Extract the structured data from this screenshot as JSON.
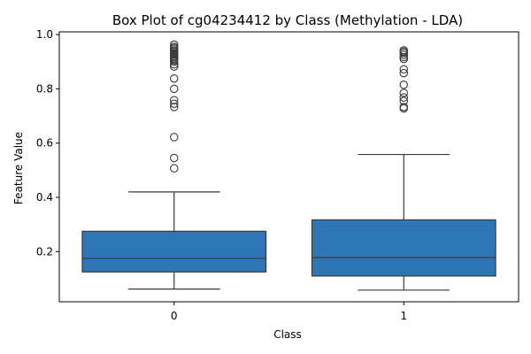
{
  "chart_data": {
    "type": "box",
    "title": "Box Plot of cg04234412 by Class (Methylation - LDA)",
    "xlabel": "Class",
    "ylabel": "Feature Value",
    "categories": [
      "0",
      "1"
    ],
    "ylim": [
      0.015,
      1.01
    ],
    "yticks": [
      0.2,
      0.4,
      0.6,
      0.8,
      1.0
    ],
    "ytick_labels": [
      "0.2",
      "0.4",
      "0.6",
      "0.8",
      "1.0"
    ],
    "grid": false,
    "box_color": "#2e75b6",
    "line_color": "#3a3a3a",
    "boxes": [
      {
        "category": "0",
        "whisker_low": 0.062,
        "q1": 0.125,
        "median": 0.175,
        "q3": 0.275,
        "whisker_high": 0.42,
        "outliers": [
          0.507,
          0.545,
          0.622,
          0.733,
          0.745,
          0.758,
          0.8,
          0.838,
          0.882,
          0.89,
          0.9,
          0.905,
          0.91,
          0.915,
          0.92,
          0.925,
          0.93,
          0.935,
          0.94,
          0.945,
          0.95,
          0.955,
          0.963
        ]
      },
      {
        "category": "1",
        "whisker_low": 0.058,
        "q1": 0.11,
        "median": 0.178,
        "q3": 0.317,
        "whisker_high": 0.558,
        "outliers": [
          0.728,
          0.733,
          0.755,
          0.768,
          0.785,
          0.815,
          0.858,
          0.872,
          0.91,
          0.917,
          0.925,
          0.932,
          0.937,
          0.942
        ]
      }
    ]
  }
}
